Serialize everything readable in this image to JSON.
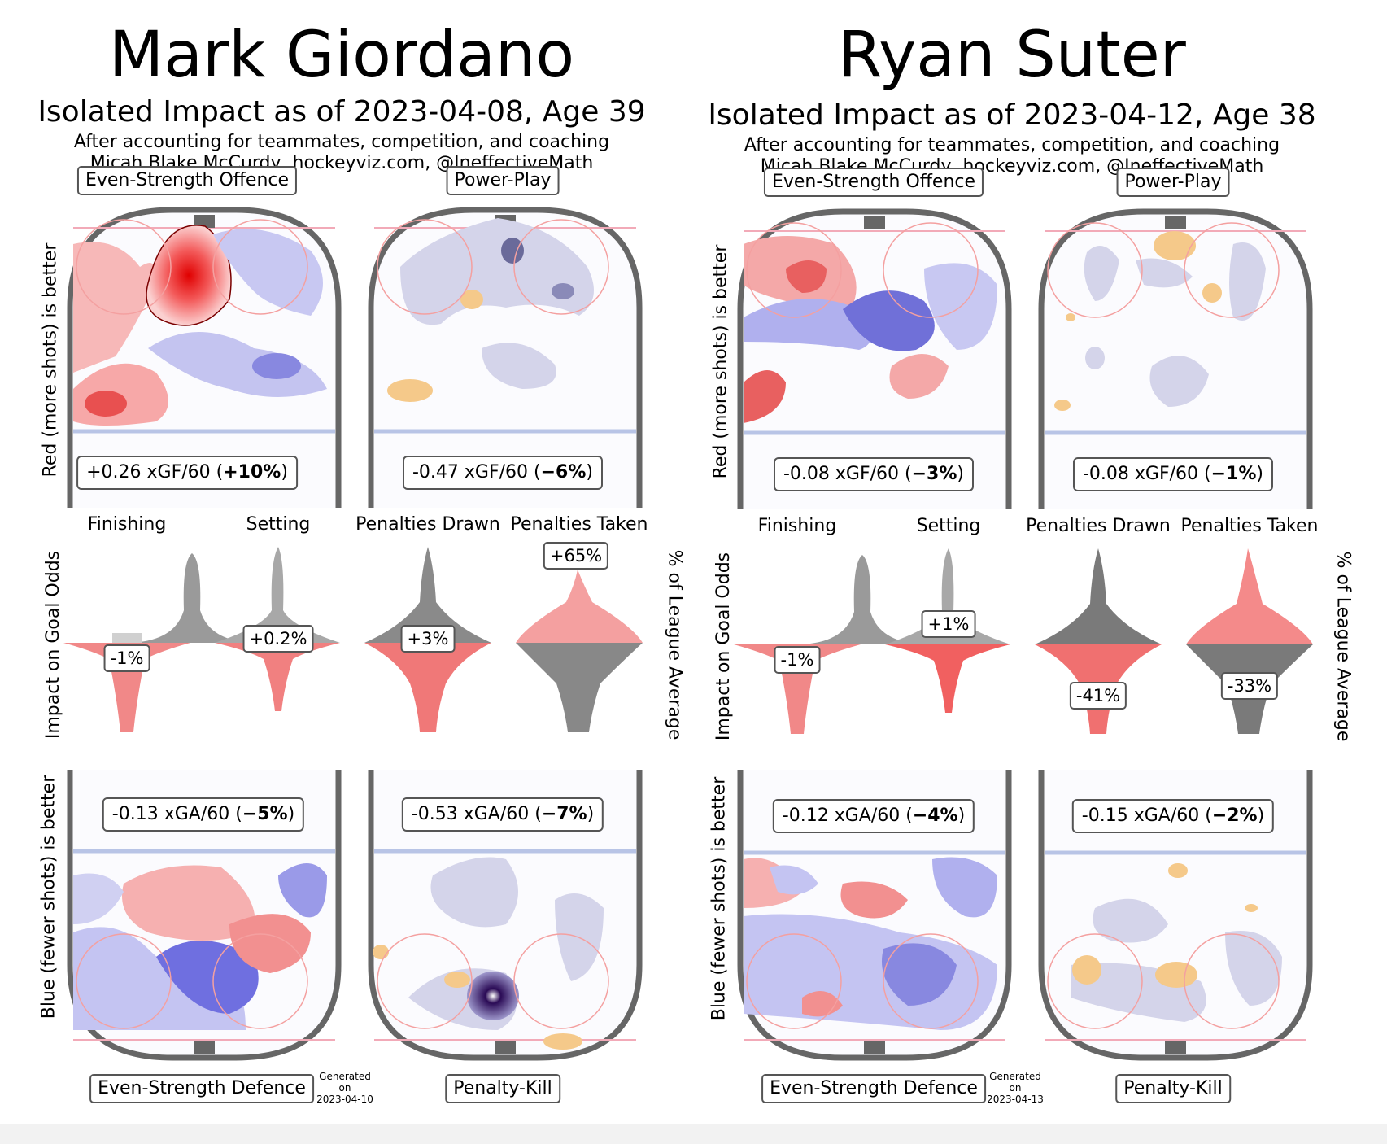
{
  "players": [
    {
      "name": "Mark Giordano",
      "subtitle": "Isolated Impact as of 2023-04-08, Age 39",
      "byline_1": "After accounting for teammates, competition, and coaching",
      "byline_2": "Micah Blake McCurdy, hockeyviz.com, @IneffectiveMath",
      "panels": {
        "es_offence": {
          "label": "Even-Strength Offence",
          "stat": "+0.26 xGF/60 (",
          "stat_bold": "+10%",
          "stat_end": ")"
        },
        "pp": {
          "label": "Power-Play",
          "stat": "-0.47 xGF/60 (",
          "stat_bold": "−6%",
          "stat_end": ")"
        },
        "es_defence": {
          "label": "Even-Strength Defence",
          "stat": "-0.13 xGA/60 (",
          "stat_bold": "−5%",
          "stat_end": ")"
        },
        "pk": {
          "label": "Penalty-Kill",
          "stat": "-0.53 xGA/60 (",
          "stat_bold": "−7%",
          "stat_end": ")"
        }
      },
      "violins": [
        {
          "title": "Finishing",
          "value": "-1%"
        },
        {
          "title": "Setting",
          "value": "+0.2%"
        },
        {
          "title": "Penalties Drawn",
          "value": "+3%"
        },
        {
          "title": "Penalties Taken",
          "value": "+65%"
        }
      ],
      "generated_1": "Generated",
      "generated_2": "on",
      "generated_3": "2023-04-10"
    },
    {
      "name": "Ryan Suter",
      "subtitle": "Isolated Impact as of 2023-04-12, Age 38",
      "byline_1": "After accounting for teammates, competition, and coaching",
      "byline_2": "Micah Blake McCurdy, hockeyviz.com, @IneffectiveMath",
      "panels": {
        "es_offence": {
          "label": "Even-Strength Offence",
          "stat": "-0.08 xGF/60 (",
          "stat_bold": "−3%",
          "stat_end": ")"
        },
        "pp": {
          "label": "Power-Play",
          "stat": "-0.08 xGF/60 (",
          "stat_bold": "−1%",
          "stat_end": ")"
        },
        "es_defence": {
          "label": "Even-Strength Defence",
          "stat": "-0.12 xGA/60 (",
          "stat_bold": "−4%",
          "stat_end": ")"
        },
        "pk": {
          "label": "Penalty-Kill",
          "stat": "-0.15 xGA/60 (",
          "stat_bold": "−2%",
          "stat_end": ")"
        }
      },
      "violins": [
        {
          "title": "Finishing",
          "value": "-1%"
        },
        {
          "title": "Setting",
          "value": "+1%"
        },
        {
          "title": "Penalties Drawn",
          "value": "-41%"
        },
        {
          "title": "Penalties Taken",
          "value": "-33%"
        }
      ],
      "generated_1": "Generated",
      "generated_2": "on",
      "generated_3": "2023-04-13"
    }
  ],
  "axis_labels": {
    "top_left": "Red (more shots) is better",
    "middle_left": "Impact on Goal Odds",
    "middle_right": "% of League Average",
    "bottom_left": "Blue (fewer shots) is better"
  },
  "chart_data": [
    {
      "type": "table",
      "player": "Mark Giordano",
      "columns": [
        "metric",
        "rate",
        "percent"
      ],
      "rows": [
        [
          "Even-Strength Offence",
          "+0.26 xGF/60",
          "+10%"
        ],
        [
          "Power-Play",
          "-0.47 xGF/60",
          "-6%"
        ],
        [
          "Even-Strength Defence",
          "-0.13 xGA/60",
          "-5%"
        ],
        [
          "Penalty-Kill",
          "-0.53 xGA/60",
          "-7%"
        ],
        [
          "Finishing",
          "",
          "-1%"
        ],
        [
          "Setting",
          "",
          "+0.2%"
        ],
        [
          "Penalties Drawn",
          "",
          "+3%"
        ],
        [
          "Penalties Taken",
          "",
          "+65%"
        ]
      ]
    },
    {
      "type": "table",
      "player": "Ryan Suter",
      "columns": [
        "metric",
        "rate",
        "percent"
      ],
      "rows": [
        [
          "Even-Strength Offence",
          "-0.08 xGF/60",
          "-3%"
        ],
        [
          "Power-Play",
          "-0.08 xGF/60",
          "-1%"
        ],
        [
          "Even-Strength Defence",
          "-0.12 xGA/60",
          "-4%"
        ],
        [
          "Penalty-Kill",
          "-0.15 xGA/60",
          "-2%"
        ],
        [
          "Finishing",
          "",
          "-1%"
        ],
        [
          "Setting",
          "",
          "+1%"
        ],
        [
          "Penalties Drawn",
          "",
          "-41%"
        ],
        [
          "Penalties Taken",
          "",
          "-33%"
        ]
      ]
    }
  ]
}
